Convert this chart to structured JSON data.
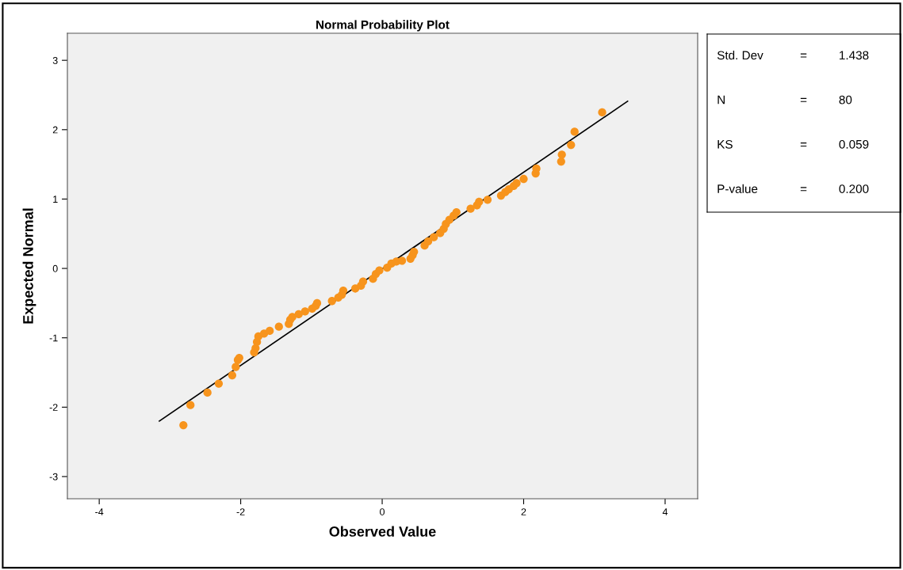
{
  "chart_data": {
    "type": "scatter",
    "title": "Normal Probability Plot",
    "xlabel": "Observed Value",
    "ylabel": "Expected Normal",
    "xlim": [
      -4.45,
      4.46
    ],
    "ylim": [
      -3.32,
      3.39
    ],
    "xticks": [
      -4,
      -2,
      0,
      2,
      4
    ],
    "yticks": [
      -3,
      -2,
      -1,
      0,
      1,
      2,
      3
    ],
    "grid": false,
    "legend": false,
    "series": [
      {
        "marker": "circle",
        "color": "#f7941d",
        "x": [
          -2.81,
          -2.71,
          -2.47,
          -2.31,
          -2.12,
          -2.07,
          -2.04,
          -2.02,
          -1.81,
          -1.79,
          -1.77,
          -1.75,
          -1.67,
          -1.59,
          -1.46,
          -1.32,
          -1.3,
          -1.27,
          -1.18,
          -1.09,
          -0.99,
          -0.94,
          -0.92,
          -0.71,
          -0.62,
          -0.57,
          -0.55,
          -0.38,
          -0.3,
          -0.27,
          -0.13,
          -0.09,
          -0.04,
          0.07,
          0.13,
          0.2,
          0.28,
          0.4,
          0.43,
          0.45,
          0.6,
          0.65,
          0.73,
          0.82,
          0.87,
          0.9,
          0.95,
          1.01,
          1.05,
          1.25,
          1.34,
          1.37,
          1.49,
          1.68,
          1.74,
          1.79,
          1.86,
          1.9,
          2.0,
          2.17,
          2.18,
          2.53,
          2.54,
          2.67,
          2.72,
          3.11
        ],
        "values": [
          -2.26,
          -1.97,
          -1.79,
          -1.66,
          -1.54,
          -1.42,
          -1.32,
          -1.29,
          -1.21,
          -1.15,
          -1.06,
          -0.98,
          -0.94,
          -0.9,
          -0.84,
          -0.8,
          -0.74,
          -0.7,
          -0.66,
          -0.62,
          -0.58,
          -0.54,
          -0.5,
          -0.47,
          -0.42,
          -0.38,
          -0.32,
          -0.29,
          -0.25,
          -0.19,
          -0.15,
          -0.08,
          -0.03,
          0.01,
          0.07,
          0.1,
          0.11,
          0.14,
          0.19,
          0.24,
          0.33,
          0.39,
          0.45,
          0.51,
          0.57,
          0.64,
          0.7,
          0.76,
          0.81,
          0.86,
          0.91,
          0.96,
          0.99,
          1.05,
          1.1,
          1.14,
          1.19,
          1.23,
          1.29,
          1.37,
          1.44,
          1.54,
          1.64,
          1.78,
          1.97,
          2.25
        ]
      },
      {
        "type": "line",
        "marker": "none",
        "color": "#000000",
        "x": [
          -3.15,
          3.47
        ],
        "values": [
          -2.2,
          2.41
        ]
      }
    ],
    "annotations": [
      "Std. Dev",
      "=",
      "1.438",
      "N",
      "=",
      "80",
      "KS",
      "=",
      "0.059",
      "P-value",
      "=",
      "0.200"
    ]
  }
}
